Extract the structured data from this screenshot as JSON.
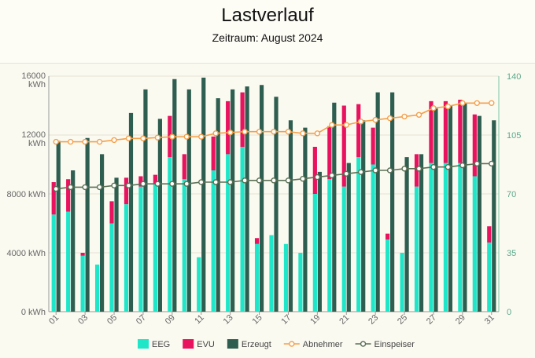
{
  "header": {
    "title": "Lastverlauf",
    "subtitle": "Zeitraum: August 2024"
  },
  "chart_data": {
    "type": "bar",
    "title": "Lastverlauf",
    "subtitle": "Zeitraum: August 2024",
    "x": [
      1,
      2,
      3,
      4,
      5,
      6,
      7,
      8,
      9,
      10,
      11,
      12,
      13,
      14,
      15,
      16,
      17,
      18,
      19,
      20,
      21,
      22,
      23,
      24,
      25,
      26,
      27,
      28,
      29,
      30,
      31
    ],
    "x_tick_labels": [
      "01",
      "03",
      "05",
      "07",
      "09",
      "11",
      "13",
      "15",
      "17",
      "19",
      "21",
      "23",
      "25",
      "27",
      "29",
      "31"
    ],
    "left_axis": {
      "ticks": [
        "0 kWh",
        "4000 kWh",
        "8000 kWh",
        "12000 kWh",
        "16000 kWh"
      ],
      "range": [
        0,
        16000
      ]
    },
    "right_axis": {
      "ticks": [
        "0",
        "35",
        "70",
        "105",
        "140"
      ],
      "range": [
        0,
        140
      ]
    },
    "series": [
      {
        "name": "EEG",
        "kind": "bar-stack",
        "color": "#1fe6c8",
        "values": [
          6600,
          6800,
          3800,
          3200,
          6000,
          7300,
          8500,
          8700,
          10500,
          9000,
          3700,
          9600,
          10700,
          11200,
          4600,
          5200,
          4600,
          4000,
          8000,
          9000,
          8500,
          10500,
          10000,
          4900,
          4000,
          8500,
          10100,
          10100,
          10100,
          9200,
          4700
        ]
      },
      {
        "name": "EVU",
        "kind": "bar-stack",
        "color": "#e8125e",
        "values": [
          2200,
          2200,
          200,
          0,
          1500,
          1800,
          700,
          600,
          2800,
          1700,
          0,
          2300,
          3600,
          3700,
          400,
          0,
          0,
          0,
          3200,
          3600,
          5500,
          3600,
          2500,
          400,
          0,
          2200,
          4200,
          4200,
          4300,
          4200,
          1100
        ]
      },
      {
        "name": "Erzeugt",
        "kind": "bar",
        "color": "#2e5e50",
        "values": [
          11600,
          9600,
          11800,
          10700,
          9100,
          13500,
          15100,
          13100,
          15800,
          15100,
          15900,
          14500,
          15100,
          15300,
          15400,
          14600,
          13000,
          12500,
          9500,
          14200,
          10100,
          13000,
          14900,
          14900,
          10500,
          10700,
          13800,
          14000,
          14200,
          13300,
          13000
        ]
      },
      {
        "name": "Abnehmer",
        "kind": "line",
        "axis": "right",
        "color": "#f5a04a",
        "values": [
          101,
          101,
          101,
          101,
          102,
          103,
          103,
          103.5,
          104,
          104,
          104,
          106,
          106.5,
          107,
          107,
          107,
          107,
          106,
          106,
          111,
          111,
          113,
          114,
          115,
          116,
          117,
          121,
          122,
          124,
          124,
          124
        ]
      },
      {
        "name": "Einspeiser",
        "kind": "line",
        "axis": "right",
        "color": "#5a7055",
        "values": [
          73,
          74,
          74,
          74,
          75,
          75,
          76,
          76,
          76,
          76,
          77,
          77,
          77,
          78,
          78,
          78,
          78,
          79,
          80,
          81,
          82,
          83,
          84,
          84,
          85,
          85,
          86,
          86,
          87,
          88,
          88
        ]
      }
    ]
  }
}
